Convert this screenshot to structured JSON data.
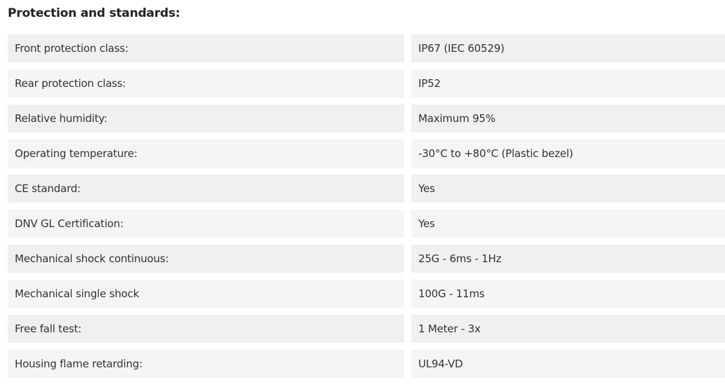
{
  "section": {
    "title": "Protection and standards:",
    "rows": [
      {
        "label": "Front protection class:",
        "value": "IP67 (IEC 60529)"
      },
      {
        "label": "Rear protection class:",
        "value": "IP52"
      },
      {
        "label": "Relative humidity:",
        "value": "Maximum 95%"
      },
      {
        "label": "Operating temperature:",
        "value": "-30°C to +80°C (Plastic bezel)"
      },
      {
        "label": "CE standard:",
        "value": "Yes"
      },
      {
        "label": "DNV GL Certification:",
        "value": "Yes"
      },
      {
        "label": "Mechanical shock continuous:",
        "value": "25G - 6ms - 1Hz"
      },
      {
        "label": "Mechanical single shock",
        "value": "100G - 11ms"
      },
      {
        "label": "Free fall test:",
        "value": "1 Meter - 3x"
      },
      {
        "label": "Housing flame retarding:",
        "value": "UL94-VD"
      }
    ]
  }
}
